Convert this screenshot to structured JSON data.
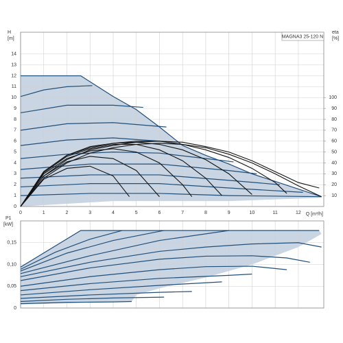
{
  "chart_data": [
    {
      "type": "line",
      "title": "MAGNA3 25-120 N",
      "y_label": "H",
      "y_unit": "[m]",
      "y2_label": "eta",
      "y2_unit": "[%]",
      "x_label": "Q [m³/h]",
      "xlim": [
        0,
        13.1
      ],
      "xticks": [
        0,
        1,
        2,
        3,
        4,
        5,
        6,
        7,
        8,
        9,
        10,
        11,
        12
      ],
      "ylim": [
        0,
        16
      ],
      "yticks": [
        0,
        1,
        2,
        3,
        4,
        5,
        6,
        7,
        8,
        9,
        10,
        11,
        12,
        13,
        14
      ],
      "y2lim": [
        0,
        160
      ],
      "y2ticks": [
        10,
        20,
        30,
        40,
        50,
        60,
        70,
        80,
        90,
        100
      ],
      "grid": true,
      "envelope": {
        "color": "#c9d5e3",
        "x": [
          0,
          2.6,
          4,
          5,
          6,
          7,
          8,
          9,
          10,
          11,
          12,
          13,
          13,
          9,
          4,
          0
        ],
        "values": [
          12,
          12,
          10.1,
          8.9,
          7.3,
          5.6,
          4.7,
          3.9,
          3.0,
          2.3,
          1.6,
          0.9,
          0.8,
          0.5,
          0.5,
          0
        ]
      },
      "series": [
        {
          "color": "#1f4e79",
          "x": [
            0,
            2.6,
            4,
            5,
            6,
            7,
            8,
            9,
            10,
            11,
            12,
            13
          ],
          "values": [
            12,
            12,
            10.1,
            8.9,
            7.3,
            5.6,
            4.7,
            3.9,
            3.0,
            2.3,
            1.6,
            0.9
          ]
        },
        {
          "color": "#1f4e79",
          "x": [
            0,
            1,
            2,
            3.1
          ],
          "values": [
            10.1,
            10.7,
            11.0,
            11.1
          ]
        },
        {
          "color": "#1f4e79",
          "x": [
            0,
            2,
            4,
            5.3
          ],
          "values": [
            8.6,
            9.3,
            9.3,
            9.1
          ]
        },
        {
          "color": "#1f4e79",
          "x": [
            0,
            2,
            4,
            6.3
          ],
          "values": [
            7.0,
            7.6,
            7.7,
            7.3
          ]
        },
        {
          "color": "#1f4e79",
          "x": [
            0,
            2,
            4,
            6,
            7.3
          ],
          "values": [
            5.6,
            6.1,
            6.3,
            6.0,
            5.6
          ]
        },
        {
          "color": "#1f4e79",
          "x": [
            0,
            2,
            4,
            6,
            8,
            9.2
          ],
          "values": [
            4.4,
            4.8,
            5.0,
            4.9,
            4.4,
            4.1
          ]
        },
        {
          "color": "#1f4e79",
          "x": [
            0,
            3,
            6,
            9,
            10.2
          ],
          "values": [
            3.4,
            3.9,
            3.9,
            3.3,
            3.0
          ]
        },
        {
          "color": "#1f4e79",
          "x": [
            0,
            3,
            6,
            9,
            11.2
          ],
          "values": [
            2.6,
            2.9,
            2.9,
            2.4,
            2.0
          ]
        },
        {
          "color": "#1f4e79",
          "x": [
            0,
            3,
            6,
            9,
            12.2
          ],
          "values": [
            1.8,
            2.1,
            2.1,
            1.7,
            1.3
          ]
        },
        {
          "color": "#1f4e79",
          "x": [
            0,
            3,
            6,
            9,
            13
          ],
          "values": [
            1.0,
            1.2,
            1.2,
            1.0,
            0.9
          ]
        },
        {
          "color": "#111111",
          "axis": "y2",
          "x": [
            0,
            1,
            2,
            3,
            4,
            4.7
          ],
          "values": [
            0,
            25,
            35,
            37,
            28,
            9
          ]
        },
        {
          "color": "#111111",
          "axis": "y2",
          "x": [
            0,
            1,
            2,
            3,
            4,
            5,
            6
          ],
          "values": [
            0,
            28,
            41,
            46,
            44,
            33,
            9
          ]
        },
        {
          "color": "#111111",
          "axis": "y2",
          "x": [
            0,
            1,
            2,
            3,
            4,
            5,
            6,
            7,
            7.4
          ],
          "values": [
            0,
            30,
            44,
            51,
            53,
            50,
            40,
            20,
            9
          ]
        },
        {
          "color": "#111111",
          "axis": "y2",
          "x": [
            0,
            1,
            2,
            3,
            4,
            5,
            6,
            7,
            8,
            8.7
          ],
          "values": [
            0,
            31,
            46,
            53,
            57,
            57,
            52,
            42,
            26,
            10
          ]
        },
        {
          "color": "#111111",
          "axis": "y2",
          "x": [
            0,
            1,
            2,
            3,
            4,
            5,
            6,
            7,
            8,
            9,
            10
          ],
          "values": [
            0,
            32,
            47,
            54,
            58,
            59,
            57,
            52,
            43,
            30,
            11
          ]
        },
        {
          "color": "#111111",
          "axis": "y2",
          "x": [
            0,
            1,
            2,
            3,
            4,
            5,
            6,
            7,
            8,
            9,
            10,
            11,
            11.5
          ],
          "values": [
            0,
            32,
            47,
            55,
            58,
            60,
            60,
            57,
            52,
            45,
            35,
            22,
            12
          ]
        },
        {
          "color": "#111111",
          "axis": "y2",
          "x": [
            0,
            1,
            2,
            3,
            4,
            5,
            6,
            7,
            8,
            9,
            10,
            11,
            12,
            12.9
          ],
          "values": [
            0,
            28,
            43,
            52,
            56,
            59,
            60,
            59,
            55,
            50,
            42,
            32,
            22,
            17
          ]
        },
        {
          "color": "#111111",
          "axis": "y2",
          "x": [
            0,
            1,
            2,
            3,
            4,
            5,
            6,
            7,
            8,
            9,
            10,
            11,
            12,
            13
          ],
          "values": [
            0,
            26,
            40,
            49,
            54,
            57,
            58,
            57,
            54,
            48,
            40,
            30,
            19,
            9
          ]
        }
      ]
    },
    {
      "type": "line",
      "y_label": "P1",
      "y_unit": "[kW]",
      "xlim": [
        0,
        13.1
      ],
      "xticks": [
        0,
        1,
        2,
        3,
        4,
        5,
        6,
        7,
        8,
        9,
        10,
        11,
        12
      ],
      "ylim": [
        0,
        0.2
      ],
      "yticks": [
        0,
        {
          "value": 0.05,
          "label": "0,05"
        },
        {
          "value": 0.1,
          "label": "0,10"
        },
        {
          "value": 0.15,
          "label": "0,15"
        }
      ],
      "grid": true,
      "envelope": {
        "color": "#c9d5e3",
        "x": [
          0,
          2.6,
          12.9,
          13,
          12,
          10,
          8,
          6,
          5,
          4.8,
          0
        ],
        "values": [
          0.094,
          0.178,
          0.178,
          0.17,
          0.14,
          0.1,
          0.07,
          0.045,
          0.03,
          0.015,
          0.008
        ]
      },
      "series": [
        {
          "color": "#1f4e79",
          "x": [
            0,
            2.6,
            12.9
          ],
          "values": [
            0.094,
            0.178,
            0.178
          ]
        },
        {
          "color": "#1f4e79",
          "x": [
            0,
            2,
            4,
            4.8
          ],
          "values": [
            0.01,
            0.013,
            0.014,
            0.015
          ]
        },
        {
          "color": "#1f4e79",
          "x": [
            0,
            2,
            4,
            6.2
          ],
          "values": [
            0.015,
            0.02,
            0.023,
            0.025
          ]
        },
        {
          "color": "#1f4e79",
          "x": [
            0,
            3,
            6,
            7.4
          ],
          "values": [
            0.022,
            0.03,
            0.036,
            0.038
          ]
        },
        {
          "color": "#1f4e79",
          "x": [
            0,
            3,
            6,
            8.7
          ],
          "values": [
            0.03,
            0.042,
            0.052,
            0.06
          ]
        },
        {
          "color": "#1f4e79",
          "x": [
            0,
            3,
            6,
            9,
            10
          ],
          "values": [
            0.04,
            0.056,
            0.068,
            0.075,
            0.078
          ]
        },
        {
          "color": "#1f4e79",
          "x": [
            0,
            3,
            6,
            8,
            10,
            11.5
          ],
          "values": [
            0.05,
            0.072,
            0.088,
            0.095,
            0.096,
            0.088
          ]
        },
        {
          "color": "#1f4e79",
          "x": [
            0,
            3,
            6,
            8,
            10,
            11.5,
            12.5
          ],
          "values": [
            0.063,
            0.092,
            0.112,
            0.119,
            0.12,
            0.115,
            0.105
          ]
        },
        {
          "color": "#1f4e79",
          "x": [
            0,
            3,
            6,
            8,
            10,
            12,
            13
          ],
          "values": [
            0.072,
            0.105,
            0.13,
            0.14,
            0.147,
            0.15,
            0.14
          ]
        },
        {
          "color": "#1f4e79",
          "x": [
            0,
            3,
            6,
            9
          ],
          "values": [
            0.079,
            0.12,
            0.155,
            0.178
          ]
        },
        {
          "color": "#1f4e79",
          "x": [
            0,
            2,
            4,
            6.2
          ],
          "values": [
            0.085,
            0.126,
            0.155,
            0.178
          ]
        },
        {
          "color": "#1f4e79",
          "x": [
            0,
            1.5,
            3,
            4.4
          ],
          "values": [
            0.089,
            0.128,
            0.158,
            0.178
          ]
        }
      ]
    }
  ]
}
